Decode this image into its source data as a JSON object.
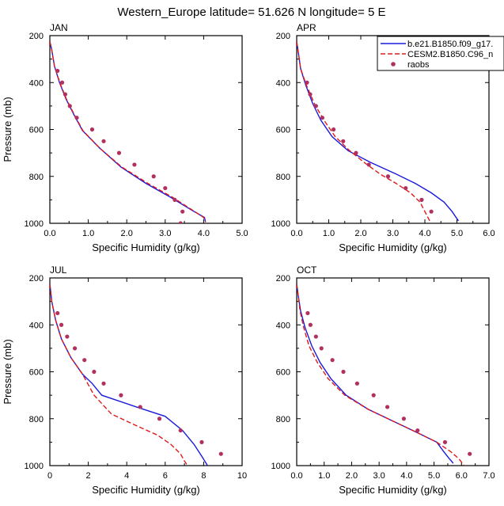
{
  "title": "Western_Europe  latitude= 51.626 N longitude= 5 E",
  "colors": {
    "model1": "#1a1adc",
    "model2": "#e01a1a",
    "obs": "#b23060"
  },
  "chart_data": [
    {
      "type": "line",
      "panel_label": "JAN",
      "xlabel": "Specific Humidity (g/kg)",
      "ylabel": "Pressure (mb)",
      "xlim": [
        0,
        5
      ],
      "ylim": [
        1000,
        200
      ],
      "xticks": [
        "0.0",
        "1.0",
        "2.0",
        "3.0",
        "4.0",
        "5.0"
      ],
      "yticks": [
        "200",
        "400",
        "600",
        "800",
        "1000"
      ],
      "series": [
        {
          "name": "b.e21.B1850.f09_g17.",
          "style": "solid",
          "color": "#1a1adc",
          "x": [
            0.0,
            0.05,
            0.12,
            0.25,
            0.42,
            0.62,
            0.85,
            1.3,
            1.85,
            2.5,
            3.15,
            3.7,
            4.02,
            4.05
          ],
          "y": [
            225,
            260,
            330,
            400,
            470,
            535,
            605,
            680,
            760,
            830,
            890,
            945,
            975,
            995
          ]
        },
        {
          "name": "CESM2.B1850.C96_n",
          "style": "dashed",
          "color": "#e01a1a",
          "x": [
            0.0,
            0.05,
            0.12,
            0.26,
            0.43,
            0.63,
            0.86,
            1.3,
            1.87,
            2.55,
            3.2,
            3.72,
            4.0,
            4.05
          ],
          "y": [
            225,
            260,
            330,
            400,
            470,
            535,
            605,
            680,
            760,
            830,
            890,
            945,
            975,
            995
          ]
        }
      ],
      "obs": {
        "name": "raobs",
        "x": [
          0.2,
          0.32,
          0.4,
          0.52,
          0.7,
          1.1,
          1.4,
          1.8,
          2.2,
          2.7,
          3.0,
          3.25,
          3.45,
          3.4
        ],
        "y": [
          350,
          400,
          450,
          500,
          550,
          600,
          650,
          700,
          750,
          800,
          850,
          900,
          950,
          1000
        ]
      }
    },
    {
      "type": "line",
      "panel_label": "APR",
      "xlabel": "Specific Humidity (g/kg)",
      "ylabel": "Pressure (mb)",
      "xlim": [
        0,
        6
      ],
      "ylim": [
        1000,
        200
      ],
      "xticks": [
        "0.0",
        "1.0",
        "2.0",
        "3.0",
        "4.0",
        "5.0",
        "6.0"
      ],
      "yticks": [
        "200",
        "400",
        "600",
        "800",
        "1000"
      ],
      "series": [
        {
          "name": "b.e21.B1850.f09_g17.",
          "style": "solid",
          "color": "#1a1adc",
          "x": [
            0.0,
            0.05,
            0.12,
            0.28,
            0.5,
            0.75,
            1.1,
            1.6,
            2.3,
            3.1,
            3.7,
            4.2,
            4.6,
            4.85,
            5.05
          ],
          "y": [
            225,
            270,
            340,
            410,
            490,
            560,
            630,
            690,
            740,
            790,
            830,
            870,
            910,
            950,
            990
          ]
        },
        {
          "name": "CESM2.B1850.C96_n",
          "style": "dashed",
          "color": "#e01a1a",
          "x": [
            0.0,
            0.05,
            0.12,
            0.3,
            0.55,
            0.85,
            1.2,
            1.65,
            2.1,
            2.6,
            3.1,
            3.55,
            3.85,
            4.0,
            4.15
          ],
          "y": [
            225,
            270,
            340,
            410,
            490,
            560,
            630,
            690,
            740,
            790,
            830,
            870,
            910,
            950,
            990
          ]
        }
      ],
      "obs": {
        "name": "raobs",
        "x": [
          0.32,
          0.42,
          0.6,
          0.8,
          1.15,
          1.45,
          1.85,
          2.25,
          2.85,
          3.4,
          3.9,
          4.2
        ],
        "y": [
          400,
          450,
          500,
          550,
          600,
          650,
          700,
          750,
          800,
          850,
          900,
          950
        ]
      }
    },
    {
      "type": "line",
      "panel_label": "JUL",
      "xlabel": "Specific Humidity (g/kg)",
      "ylabel": "Pressure (mb)",
      "xlim": [
        0,
        10
      ],
      "ylim": [
        1000,
        200
      ],
      "xticks": [
        "0",
        "2",
        "4",
        "6",
        "8",
        "10"
      ],
      "yticks": [
        "200",
        "400",
        "600",
        "800",
        "1000"
      ],
      "series": [
        {
          "name": "b.e21.B1850.f09_g17.",
          "style": "solid",
          "color": "#1a1adc",
          "x": [
            0.0,
            0.1,
            0.3,
            0.6,
            1.1,
            1.7,
            2.2,
            2.7,
            4.5,
            6.0,
            6.9,
            7.5,
            7.9,
            8.2
          ],
          "y": [
            225,
            300,
            380,
            460,
            540,
            610,
            650,
            700,
            750,
            790,
            850,
            910,
            960,
            1000
          ]
        },
        {
          "name": "CESM2.B1850.C96_n",
          "style": "dashed",
          "color": "#e01a1a",
          "x": [
            0.0,
            0.1,
            0.3,
            0.6,
            1.1,
            1.7,
            2.3,
            3.2,
            4.5,
            5.6,
            6.3,
            6.8,
            7.0,
            7.2
          ],
          "y": [
            225,
            300,
            380,
            460,
            540,
            610,
            700,
            780,
            830,
            870,
            910,
            950,
            980,
            1005
          ]
        }
      ],
      "obs": {
        "name": "raobs",
        "x": [
          0.4,
          0.6,
          0.9,
          1.3,
          1.8,
          2.3,
          2.8,
          3.7,
          4.7,
          5.7,
          6.8,
          7.9,
          8.9
        ],
        "y": [
          350,
          400,
          450,
          500,
          550,
          600,
          650,
          700,
          750,
          800,
          850,
          900,
          950
        ]
      }
    },
    {
      "type": "line",
      "panel_label": "OCT",
      "xlabel": "Specific Humidity (g/kg)",
      "ylabel": "Pressure (mb)",
      "xlim": [
        0,
        7
      ],
      "ylim": [
        1000,
        200
      ],
      "xticks": [
        "0.0",
        "1.0",
        "2.0",
        "3.0",
        "4.0",
        "5.0",
        "6.0",
        "7.0"
      ],
      "yticks": [
        "200",
        "400",
        "600",
        "800",
        "1000"
      ],
      "series": [
        {
          "name": "b.e21.B1850.f09_g17.",
          "style": "solid",
          "color": "#1a1adc",
          "x": [
            0.0,
            0.05,
            0.14,
            0.3,
            0.55,
            0.85,
            1.25,
            1.8,
            2.6,
            3.5,
            4.4,
            5.1,
            5.35,
            5.55,
            5.7
          ],
          "y": [
            225,
            270,
            340,
            410,
            490,
            560,
            630,
            700,
            760,
            810,
            860,
            900,
            940,
            970,
            990
          ]
        },
        {
          "name": "CESM2.B1850.C96_n",
          "style": "dashed",
          "color": "#e01a1a",
          "x": [
            0.0,
            0.05,
            0.12,
            0.25,
            0.45,
            0.75,
            1.15,
            1.75,
            2.6,
            3.5,
            4.4,
            5.1,
            5.6,
            5.9,
            6.1
          ],
          "y": [
            225,
            270,
            340,
            410,
            490,
            560,
            630,
            700,
            760,
            810,
            860,
            900,
            940,
            970,
            1000
          ]
        }
      ],
      "obs": {
        "name": "raobs",
        "x": [
          0.4,
          0.5,
          0.7,
          0.9,
          1.3,
          1.7,
          2.2,
          2.8,
          3.3,
          3.9,
          4.4,
          5.4,
          6.3
        ],
        "y": [
          350,
          400,
          450,
          500,
          550,
          600,
          650,
          700,
          750,
          800,
          850,
          900,
          950
        ]
      }
    }
  ]
}
